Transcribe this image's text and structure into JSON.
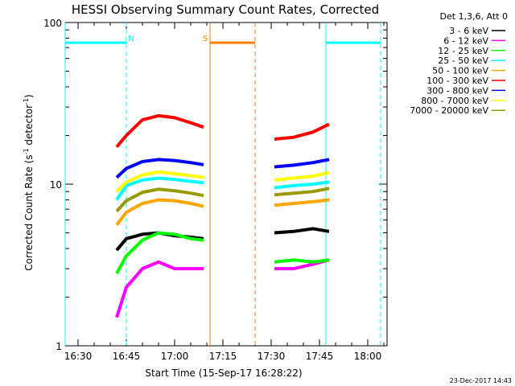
{
  "chart_data": {
    "type": "line",
    "title": "HESSI Observing Summary Count Rates, Corrected",
    "xlabel": "Start Time (15-Sep-17 16:28:22)",
    "ylabel": "Corrected Count Rate (s",
    "ylabel_sup1": "-1",
    "ylabel_mid": " detector",
    "ylabel_sup2": "-1",
    "ylabel_end": ")",
    "yscale": "log",
    "ylim": [
      1,
      100
    ],
    "xlim": [
      "16:26",
      "18:06"
    ],
    "x_ticks": [
      "16:30",
      "16:45",
      "17:00",
      "17:15",
      "17:30",
      "17:45",
      "18:00"
    ],
    "y_ticks": [
      "1",
      "10",
      "100"
    ],
    "legend_title": "Det 1,3,6, Att 0",
    "legend_placement": "right",
    "footer": "23-Dec-2017 14:43",
    "series": [
      {
        "name": "3 - 6 keV",
        "color": "#000000",
        "values": [
          3.9,
          4.6,
          4.9,
          5.0,
          4.8,
          4.7,
          4.6,
          5.0,
          5.1,
          5.3,
          5.1
        ]
      },
      {
        "name": "6 - 12 keV",
        "color": "#ff00ff",
        "values": [
          1.5,
          2.3,
          3.0,
          3.3,
          3.0,
          3.0,
          3.0,
          3.0,
          3.0,
          3.2,
          3.4
        ]
      },
      {
        "name": "12 - 25 keV",
        "color": "#00ff00",
        "values": [
          2.8,
          3.6,
          4.5,
          5.0,
          4.9,
          4.6,
          4.5,
          3.3,
          3.4,
          3.3,
          3.4
        ]
      },
      {
        "name": "25 - 50 keV",
        "color": "#00ffff",
        "values": [
          8.0,
          9.8,
          10.6,
          10.9,
          10.7,
          10.4,
          10.2,
          9.5,
          9.8,
          10.0,
          10.3
        ]
      },
      {
        "name": "50 - 100 keV",
        "color": "#ffa500",
        "values": [
          5.6,
          6.7,
          7.6,
          8.0,
          7.9,
          7.6,
          7.3,
          7.4,
          7.6,
          7.8,
          8.0
        ]
      },
      {
        "name": "100 - 300 keV",
        "color": "#ff0000",
        "values": [
          17.0,
          20.0,
          25.0,
          26.5,
          25.8,
          24.0,
          22.5,
          19.0,
          19.5,
          21.0,
          23.5
        ]
      },
      {
        "name": "300 - 800 keV",
        "color": "#0000ff",
        "values": [
          11.0,
          12.5,
          13.8,
          14.2,
          14.0,
          13.6,
          13.2,
          12.8,
          13.1,
          13.6,
          14.2
        ]
      },
      {
        "name": "800 - 7000 keV",
        "color": "#ffff00",
        "values": [
          9.0,
          10.3,
          11.4,
          11.9,
          11.6,
          11.3,
          11.0,
          10.6,
          10.9,
          11.2,
          11.8
        ]
      },
      {
        "name": "7000 - 20000 keV",
        "color": "#999900",
        "values": [
          6.8,
          7.9,
          8.9,
          9.3,
          9.1,
          8.8,
          8.5,
          8.6,
          8.8,
          9.0,
          9.4
        ]
      }
    ],
    "series_times": [
      "16:42",
      "16:45",
      "16:50",
      "16:55",
      "17:00",
      "17:05",
      "17:09",
      "17:31",
      "17:37",
      "17:43",
      "17:48"
    ],
    "annotations": [
      {
        "label": "N",
        "color": "#00ffff",
        "start": "16:26",
        "end": "16:45",
        "kind": "night"
      },
      {
        "label": "S",
        "color": "#ff7f00",
        "start": "17:11",
        "end": "17:25",
        "kind": "saa"
      },
      {
        "label": "",
        "color": "#00ffff",
        "start": "17:47",
        "end": "18:04",
        "kind": "night"
      }
    ]
  }
}
